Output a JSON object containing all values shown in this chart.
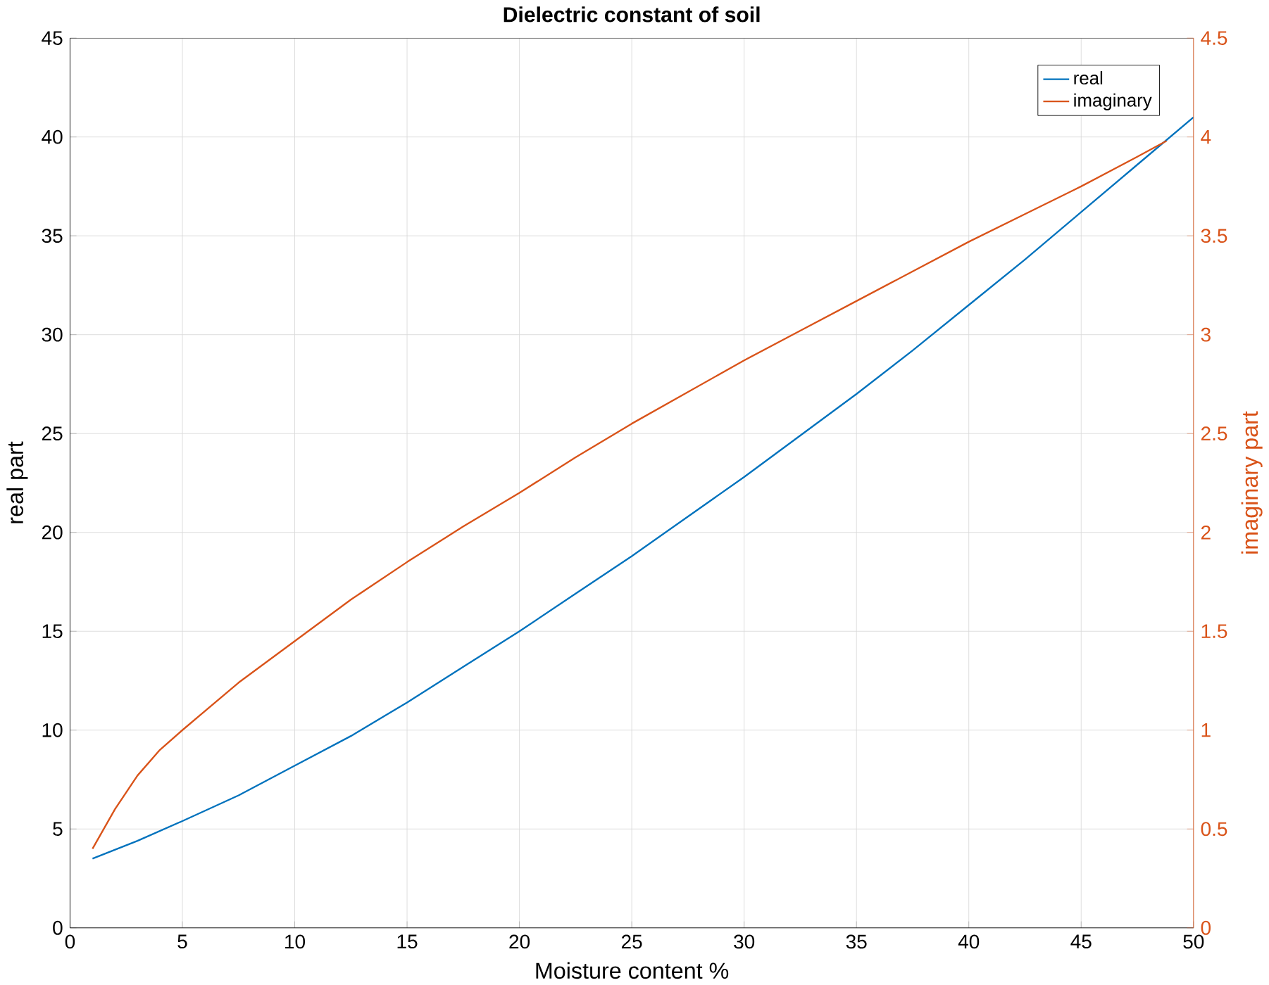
{
  "chart_data": {
    "type": "line",
    "title": "Dielectric constant of soil",
    "xlabel": "Moisture content %",
    "ylabel": "real part",
    "y2label": "imaginary part",
    "xlim": [
      0,
      50
    ],
    "xticks": [
      0,
      5,
      10,
      15,
      20,
      25,
      30,
      35,
      40,
      45,
      50
    ],
    "ylim": [
      0,
      45
    ],
    "yticks": [
      0,
      5,
      10,
      15,
      20,
      25,
      30,
      35,
      40,
      45
    ],
    "y2lim": [
      0,
      4.5
    ],
    "y2ticks": [
      0,
      0.5,
      1,
      1.5,
      2,
      2.5,
      3,
      3.5,
      4,
      4.5
    ],
    "grid": true,
    "legend": "top right",
    "line_style": "solid",
    "marker": "none",
    "series": [
      {
        "name": "real",
        "color": "#0072bd",
        "x": [
          1,
          3,
          5,
          7.5,
          10,
          12.5,
          15,
          17.5,
          20,
          22.5,
          25,
          27.5,
          30,
          32.5,
          35,
          37.5,
          40,
          42.5,
          45,
          47.5,
          50
        ],
        "values": [
          3.5,
          4.4,
          5.4,
          6.7,
          8.2,
          9.7,
          11.4,
          13.2,
          15,
          16.9,
          18.8,
          20.8,
          22.8,
          24.9,
          27,
          29.2,
          31.5,
          33.8,
          36.2,
          38.6,
          41
        ]
      },
      {
        "name": "imaginary",
        "color": "#d95319",
        "axis": "y2",
        "x": [
          1,
          1.5,
          2,
          3,
          4,
          5,
          7.5,
          10,
          12.5,
          15,
          17.5,
          20,
          22.5,
          25,
          27.5,
          30,
          32.5,
          35,
          37.5,
          40,
          42.5,
          45,
          47.5,
          48.8
        ],
        "values": [
          0.4,
          0.5,
          0.6,
          0.77,
          0.9,
          1.0,
          1.24,
          1.45,
          1.66,
          1.85,
          2.03,
          2.2,
          2.38,
          2.55,
          2.71,
          2.87,
          3.02,
          3.17,
          3.32,
          3.47,
          3.61,
          3.75,
          3.9,
          3.98
        ]
      }
    ]
  }
}
